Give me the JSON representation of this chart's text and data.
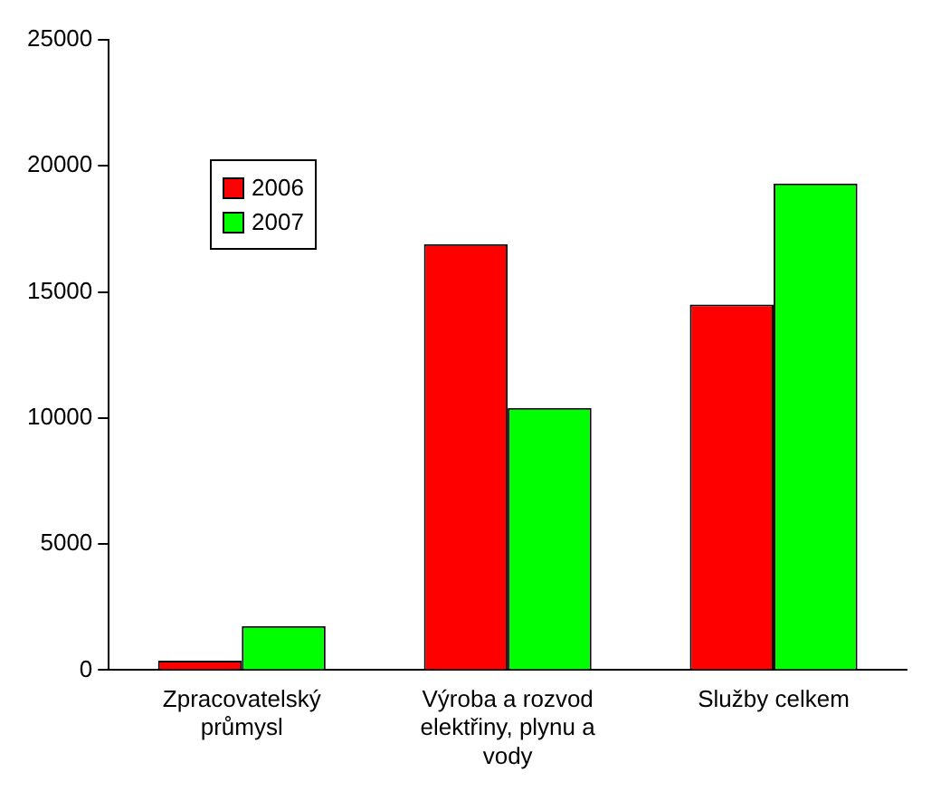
{
  "chart_data": {
    "type": "bar",
    "categories": [
      "Zpracovatelský průmysl",
      "Výroba a rozvod elektřiny, plynu a vody",
      "Služby celkem"
    ],
    "series": [
      {
        "name": "2006",
        "color": "#ff0000",
        "values": [
          370,
          16900,
          14500
        ]
      },
      {
        "name": "2007",
        "color": "#00ff00",
        "values": [
          1750,
          10400,
          19300
        ]
      }
    ],
    "ylim": [
      0,
      25000
    ],
    "yticks": [
      0,
      5000,
      10000,
      15000,
      20000,
      25000
    ],
    "grid": false,
    "legend": "top left"
  }
}
